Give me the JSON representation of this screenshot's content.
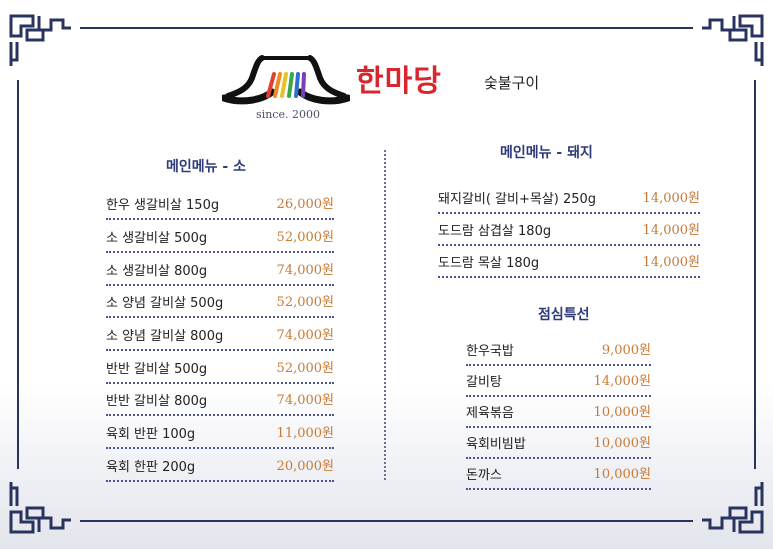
{
  "brand": {
    "name": "한마당",
    "sub": "숯불구이",
    "since": "since. 2000"
  },
  "menu_beef": {
    "title": "메인메뉴 - 소",
    "items": [
      {
        "name": "한우 생갈비살 150g",
        "price": "26,000원"
      },
      {
        "name": "소 생갈비살 500g",
        "price": "52,000원"
      },
      {
        "name": "소 생갈비살 800g",
        "price": "74,000원"
      },
      {
        "name": "소 양념 갈비살 500g",
        "price": "52,000원"
      },
      {
        "name": "소 양념 갈비살 800g",
        "price": "74,000원"
      },
      {
        "name": "반반 갈비살 500g",
        "price": "52,000원"
      },
      {
        "name": "반반 갈비살 800g",
        "price": "74,000원"
      },
      {
        "name": "육회 반판 100g",
        "price": "11,000원"
      },
      {
        "name": "육회 한판 200g",
        "price": "20,000원"
      }
    ]
  },
  "menu_pork": {
    "title": "메인메뉴 - 돼지",
    "items": [
      {
        "name": "돼지갈비( 갈비+목살) 250g",
        "price": "14,000원"
      },
      {
        "name": "도드람 삼겹살 180g",
        "price": "14,000원"
      },
      {
        "name": "도드람 목살 180g",
        "price": "14,000원"
      }
    ]
  },
  "lunch": {
    "title": "점심특선",
    "items": [
      {
        "name": "한우국밥",
        "price": "9,000원"
      },
      {
        "name": "갈비탕",
        "price": "14,000원"
      },
      {
        "name": "제육볶음",
        "price": "10,000원"
      },
      {
        "name": "육회비빔밥",
        "price": "10,000원"
      },
      {
        "name": "돈까스",
        "price": "10,000원"
      }
    ]
  },
  "colors": {
    "frame": "#28345f",
    "brand_red": "#d9262e",
    "title_blue": "#2f3a7a",
    "price": "#c97a35"
  }
}
